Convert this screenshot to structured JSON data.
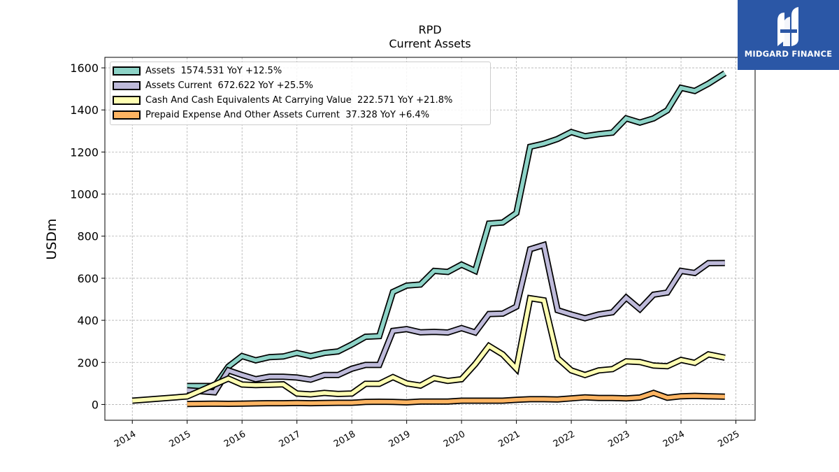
{
  "header": {
    "title": "RPD",
    "subtitle": "Current  Assets"
  },
  "logo": {
    "text": "MIDGARD FINANCE",
    "background": "#2b57a6"
  },
  "chart_data": {
    "type": "line",
    "title": "RPD",
    "subtitle": "Current  Assets",
    "xlabel": "",
    "ylabel": "USDm",
    "ylim": [
      -75,
      1650
    ],
    "xlim": [
      2013.5,
      2025.35
    ],
    "yticks": [
      0,
      200,
      400,
      600,
      800,
      1000,
      1200,
      1400,
      1600
    ],
    "xticks": [
      2014,
      2015,
      2016,
      2017,
      2018,
      2019,
      2020,
      2021,
      2022,
      2023,
      2024,
      2025
    ],
    "grid": true,
    "legend_position": "top-left",
    "series": [
      {
        "name": "Assets",
        "legend": "Assets  1574.531 YoY +12.5%",
        "color": "#8dd3c7",
        "x": [
          2015.0,
          2015.5,
          2015.75,
          2016.0,
          2016.25,
          2016.5,
          2016.75,
          2017.0,
          2017.25,
          2017.5,
          2017.75,
          2018.0,
          2018.25,
          2018.5,
          2018.75,
          2019.0,
          2019.25,
          2019.5,
          2019.75,
          2020.0,
          2020.25,
          2020.5,
          2020.75,
          2021.0,
          2021.25,
          2021.5,
          2021.75,
          2022.0,
          2022.25,
          2022.5,
          2022.75,
          2023.0,
          2023.25,
          2023.5,
          2023.75,
          2024.0,
          2024.25,
          2024.5,
          2024.8
        ],
        "y": [
          88,
          88,
          180,
          230,
          210,
          225,
          228,
          245,
          230,
          245,
          252,
          285,
          322,
          325,
          535,
          565,
          570,
          635,
          630,
          665,
          635,
          860,
          865,
          910,
          1225,
          1240,
          1262,
          1295,
          1275,
          1285,
          1292,
          1360,
          1340,
          1360,
          1398,
          1505,
          1490,
          1525,
          1574.531
        ]
      },
      {
        "name": "Assets Current",
        "legend": "Assets Current  672.622 YoY +25.5%",
        "color": "#bebada",
        "x": [
          2015.0,
          2015.5,
          2015.75,
          2016.0,
          2016.25,
          2016.5,
          2016.75,
          2017.0,
          2017.25,
          2017.5,
          2017.75,
          2018.0,
          2018.25,
          2018.5,
          2018.75,
          2019.0,
          2019.25,
          2019.5,
          2019.75,
          2020.0,
          2020.25,
          2020.5,
          2020.75,
          2021.0,
          2021.25,
          2021.5,
          2021.75,
          2022.0,
          2022.25,
          2022.5,
          2022.75,
          2023.0,
          2023.25,
          2023.5,
          2023.75,
          2024.0,
          2024.25,
          2024.5,
          2024.8
        ],
        "y": [
          68,
          58,
          162,
          140,
          120,
          132,
          132,
          128,
          118,
          140,
          140,
          170,
          188,
          188,
          350,
          358,
          343,
          345,
          342,
          363,
          342,
          430,
          432,
          465,
          738,
          758,
          448,
          428,
          410,
          428,
          438,
          508,
          453,
          522,
          532,
          635,
          625,
          672,
          672.622
        ]
      },
      {
        "name": "Cash And Cash Equivalents At Carrying Value",
        "legend": "Cash And Cash Equivalents At Carrying Value  222.571 YoY +21.8%",
        "color": "#ffffb3",
        "x": [
          2014.0,
          2015.0,
          2015.75,
          2016.0,
          2016.25,
          2016.5,
          2016.75,
          2017.0,
          2017.25,
          2017.5,
          2017.75,
          2018.0,
          2018.25,
          2018.5,
          2018.75,
          2019.0,
          2019.25,
          2019.5,
          2019.75,
          2020.0,
          2020.25,
          2020.5,
          2020.75,
          2021.0,
          2021.25,
          2021.5,
          2021.75,
          2022.0,
          2022.25,
          2022.5,
          2022.75,
          2023.0,
          2023.25,
          2023.5,
          2023.75,
          2024.0,
          2024.25,
          2024.5,
          2024.8
        ],
        "y": [
          18,
          38,
          123,
          95,
          92,
          94,
          96,
          52,
          48,
          55,
          50,
          52,
          98,
          98,
          130,
          100,
          90,
          125,
          112,
          120,
          192,
          278,
          238,
          170,
          505,
          495,
          220,
          162,
          140,
          162,
          168,
          205,
          202,
          185,
          182,
          212,
          198,
          238,
          222.571
        ]
      },
      {
        "name": "Prepaid Expense And Other Assets Current",
        "legend": "Prepaid Expense And Other Assets Current  37.328 YoY +6.4%",
        "color": "#fdb462",
        "x": [
          2015.0,
          2015.5,
          2015.75,
          2016.0,
          2016.25,
          2016.5,
          2016.75,
          2017.0,
          2017.25,
          2017.5,
          2017.75,
          2018.0,
          2018.25,
          2018.5,
          2018.75,
          2019.0,
          2019.25,
          2019.5,
          2019.75,
          2020.0,
          2020.25,
          2020.5,
          2020.75,
          2021.0,
          2021.25,
          2021.5,
          2021.75,
          2022.0,
          2022.25,
          2022.5,
          2022.75,
          2023.0,
          2023.25,
          2023.5,
          2023.75,
          2024.0,
          2024.25,
          2024.5,
          2024.8
        ],
        "y": [
          2,
          4,
          3,
          4,
          5,
          6,
          6,
          7,
          6,
          7,
          8,
          8,
          12,
          13,
          12,
          10,
          14,
          14,
          14,
          18,
          18,
          18,
          18,
          22,
          25,
          25,
          24,
          29,
          34,
          31,
          31,
          29,
          33,
          55,
          32,
          39,
          41,
          39,
          37.328
        ]
      }
    ]
  }
}
